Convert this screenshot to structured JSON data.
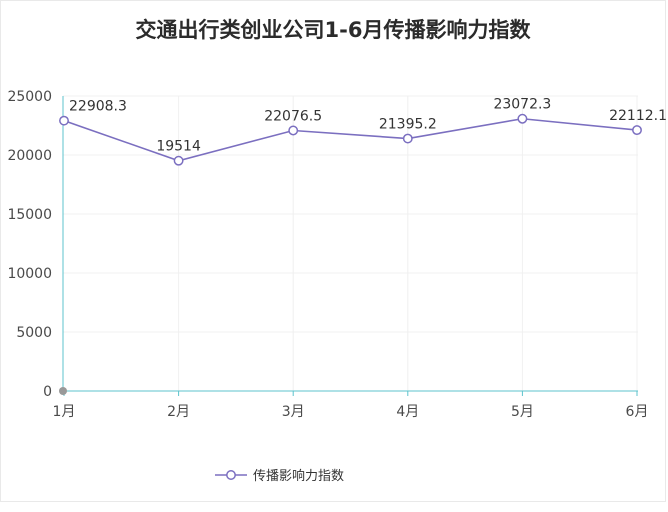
{
  "chart_data": {
    "type": "line",
    "title": "交通出行类创业公司1-6月传播影响力指数",
    "categories": [
      "1月",
      "2月",
      "3月",
      "4月",
      "5月",
      "6月"
    ],
    "series": [
      {
        "name": "传播影响力指数",
        "values": [
          22908.3,
          19514,
          22076.5,
          21395.2,
          23072.3,
          22112.1
        ],
        "labels": [
          "22908.3",
          "19514",
          "22076.5",
          "21395.2",
          "23072.3",
          "22112.1"
        ]
      }
    ],
    "ylim": [
      0,
      25000
    ],
    "yticks": [
      "0",
      "5000",
      "10000",
      "15000",
      "20000",
      "25000"
    ],
    "yticks_values": [
      0,
      5000,
      10000,
      15000,
      20000,
      25000
    ],
    "grid": true,
    "legend_position": "bottom-center",
    "colors": {
      "line": "#7b6fc0",
      "axis": "#5cc3cc",
      "grid": "#f0f0f0"
    }
  }
}
